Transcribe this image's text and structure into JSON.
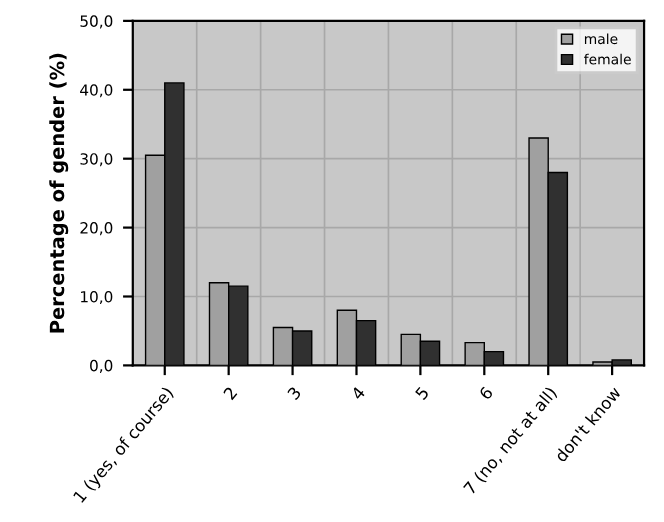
{
  "chart_data": {
    "type": "bar",
    "ylabel": "Percentage of gender (%)",
    "categories": [
      "1 (yes, of course)",
      "2",
      "3",
      "4",
      "5",
      "6",
      "7 (no, not at all)",
      "don't know"
    ],
    "series": [
      {
        "name": "male",
        "color": "#a0a0a0",
        "values": [
          30.5,
          12,
          5.5,
          8,
          4.5,
          3.3,
          33,
          0.5
        ]
      },
      {
        "name": "female",
        "color": "#303030",
        "values": [
          41,
          11.5,
          5,
          6.5,
          3.5,
          2,
          28,
          0.8
        ]
      }
    ],
    "ylim": [
      0,
      50
    ],
    "yticks": [
      {
        "value": 0,
        "label": "0,0"
      },
      {
        "value": 10,
        "label": "10,0"
      },
      {
        "value": 20,
        "label": "20,0"
      },
      {
        "value": 30,
        "label": "30,0"
      },
      {
        "value": 40,
        "label": "40,0"
      },
      {
        "value": 50,
        "label": "50,0"
      }
    ],
    "grid": true,
    "legend": "top right"
  }
}
